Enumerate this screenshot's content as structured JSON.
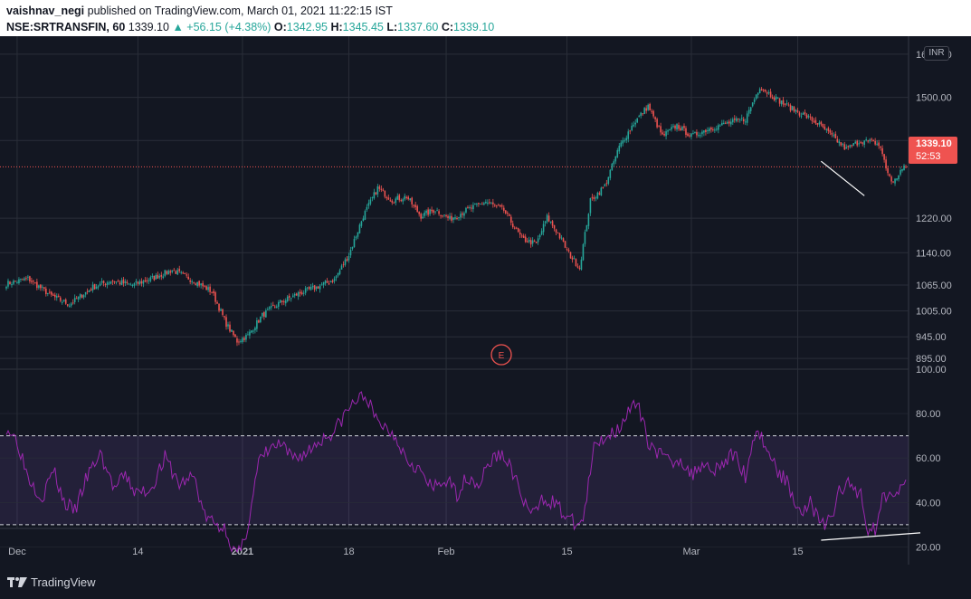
{
  "header": {
    "author": "vaishnav_negi",
    "published_text": "published on TradingView.com, March 01, 2021 11:22:15 IST",
    "symbol": "NSE:SRTRANSFIN, 60",
    "last": "1339.10",
    "change": "+56.15 (+4.38%)",
    "o_label": "O:",
    "o_val": "1342.95",
    "h_label": "H:",
    "h_val": "1345.45",
    "l_label": "L:",
    "l_val": "1337.60",
    "c_label": "C:",
    "c_val": "1339.10"
  },
  "currency_badge": "INR",
  "price_tag": {
    "price": "1339.10",
    "countdown": "52:53"
  },
  "earnings_marker": "E",
  "footer": {
    "brand": "TradingView"
  },
  "colors": {
    "up": "#26a69a",
    "down": "#ef5350",
    "rsi": "#9c27b0",
    "background": "#131722",
    "grid": "#2a2e39",
    "text": "#b2b5be",
    "trendline": "#ffffff"
  },
  "chart_data": [
    {
      "type": "candlestick",
      "title": "NSE:SRTRANSFIN, 60",
      "price_axis_ticks": [
        1600,
        1500,
        1400,
        1339.1,
        1220,
        1140,
        1065,
        1005,
        945,
        895
      ],
      "price_axis_labels": [
        "1600.00",
        "1500.00",
        "1400.00",
        "1339.10",
        "1220.00",
        "1140.00",
        "1065.00",
        "1005.00",
        "945.00",
        "895.00"
      ],
      "time_axis_labels": [
        "Dec",
        "14",
        "2021",
        "18",
        "Feb",
        "15",
        "Mar",
        "15"
      ],
      "ylim": [
        870,
        1625
      ],
      "last_price": 1339.1,
      "anchor_closes": [
        [
          0,
          1068
        ],
        [
          12,
          1080
        ],
        [
          25,
          1040
        ],
        [
          35,
          1020
        ],
        [
          48,
          1060
        ],
        [
          58,
          1075
        ],
        [
          70,
          1065
        ],
        [
          82,
          1082
        ],
        [
          92,
          1100
        ],
        [
          104,
          1075
        ],
        [
          114,
          1050
        ],
        [
          122,
          975
        ],
        [
          128,
          935
        ],
        [
          134,
          948
        ],
        [
          142,
          995
        ],
        [
          152,
          1025
        ],
        [
          162,
          1045
        ],
        [
          172,
          1060
        ],
        [
          182,
          1078
        ],
        [
          190,
          1135
        ],
        [
          198,
          1225
        ],
        [
          206,
          1290
        ],
        [
          214,
          1262
        ],
        [
          222,
          1270
        ],
        [
          230,
          1225
        ],
        [
          238,
          1240
        ],
        [
          246,
          1218
        ],
        [
          256,
          1240
        ],
        [
          266,
          1258
        ],
        [
          276,
          1238
        ],
        [
          286,
          1172
        ],
        [
          294,
          1160
        ],
        [
          300,
          1222
        ],
        [
          306,
          1185
        ],
        [
          312,
          1138
        ],
        [
          318,
          1105
        ],
        [
          324,
          1260
        ],
        [
          332,
          1295
        ],
        [
          340,
          1385
        ],
        [
          348,
          1440
        ],
        [
          356,
          1480
        ],
        [
          364,
          1410
        ],
        [
          372,
          1435
        ],
        [
          380,
          1410
        ],
        [
          390,
          1428
        ],
        [
          400,
          1440
        ],
        [
          410,
          1450
        ],
        [
          418,
          1525
        ],
        [
          426,
          1500
        ],
        [
          434,
          1478
        ],
        [
          442,
          1460
        ],
        [
          450,
          1440
        ],
        [
          458,
          1410
        ],
        [
          466,
          1380
        ],
        [
          474,
          1400
        ],
        [
          482,
          1395
        ],
        [
          485,
          1385
        ],
        [
          488,
          1335
        ],
        [
          492,
          1300
        ],
        [
          496,
          1330
        ],
        [
          499,
          1339.1
        ]
      ],
      "trendlines": [
        {
          "from": [
            452,
            1352
          ],
          "to": [
            476,
            1272
          ]
        }
      ]
    },
    {
      "type": "line",
      "title": "RSI",
      "axis_ticks": [
        100,
        80,
        60,
        40,
        20
      ],
      "axis_labels": [
        "100.00",
        "80.00",
        "60.00",
        "40.00",
        "20.00"
      ],
      "ylim": [
        12,
        100
      ],
      "band": [
        30,
        70
      ],
      "anchors": [
        [
          0,
          74
        ],
        [
          6,
          68
        ],
        [
          12,
          52
        ],
        [
          20,
          42
        ],
        [
          26,
          55
        ],
        [
          32,
          40
        ],
        [
          38,
          36
        ],
        [
          44,
          50
        ],
        [
          52,
          62
        ],
        [
          60,
          46
        ],
        [
          66,
          52
        ],
        [
          72,
          44
        ],
        [
          80,
          46
        ],
        [
          88,
          60
        ],
        [
          96,
          48
        ],
        [
          104,
          52
        ],
        [
          110,
          34
        ],
        [
          116,
          30
        ],
        [
          122,
          28
        ],
        [
          126,
          18
        ],
        [
          130,
          17
        ],
        [
          134,
          30
        ],
        [
          140,
          58
        ],
        [
          146,
          64
        ],
        [
          152,
          66
        ],
        [
          158,
          60
        ],
        [
          166,
          62
        ],
        [
          174,
          68
        ],
        [
          182,
          72
        ],
        [
          188,
          80
        ],
        [
          194,
          86
        ],
        [
          200,
          88
        ],
        [
          204,
          78
        ],
        [
          210,
          74
        ],
        [
          216,
          70
        ],
        [
          222,
          60
        ],
        [
          228,
          56
        ],
        [
          236,
          46
        ],
        [
          244,
          50
        ],
        [
          250,
          44
        ],
        [
          256,
          52
        ],
        [
          262,
          48
        ],
        [
          268,
          58
        ],
        [
          274,
          62
        ],
        [
          280,
          56
        ],
        [
          286,
          42
        ],
        [
          292,
          34
        ],
        [
          298,
          42
        ],
        [
          304,
          40
        ],
        [
          310,
          34
        ],
        [
          316,
          30
        ],
        [
          320,
          32
        ],
        [
          326,
          64
        ],
        [
          332,
          70
        ],
        [
          338,
          72
        ],
        [
          344,
          80
        ],
        [
          350,
          84
        ],
        [
          356,
          68
        ],
        [
          362,
          62
        ],
        [
          368,
          58
        ],
        [
          374,
          60
        ],
        [
          380,
          52
        ],
        [
          386,
          58
        ],
        [
          392,
          55
        ],
        [
          398,
          58
        ],
        [
          404,
          62
        ],
        [
          410,
          52
        ],
        [
          416,
          74
        ],
        [
          422,
          64
        ],
        [
          428,
          54
        ],
        [
          434,
          48
        ],
        [
          440,
          36
        ],
        [
          446,
          40
        ],
        [
          452,
          30
        ],
        [
          458,
          32
        ],
        [
          462,
          46
        ],
        [
          468,
          48
        ],
        [
          474,
          44
        ],
        [
          478,
          28
        ],
        [
          482,
          28
        ],
        [
          486,
          42
        ],
        [
          492,
          46
        ],
        [
          499,
          47
        ]
      ],
      "trendlines": [
        {
          "from": [
            452,
            23
          ],
          "to": [
            499,
            26.3
          ]
        }
      ]
    }
  ]
}
